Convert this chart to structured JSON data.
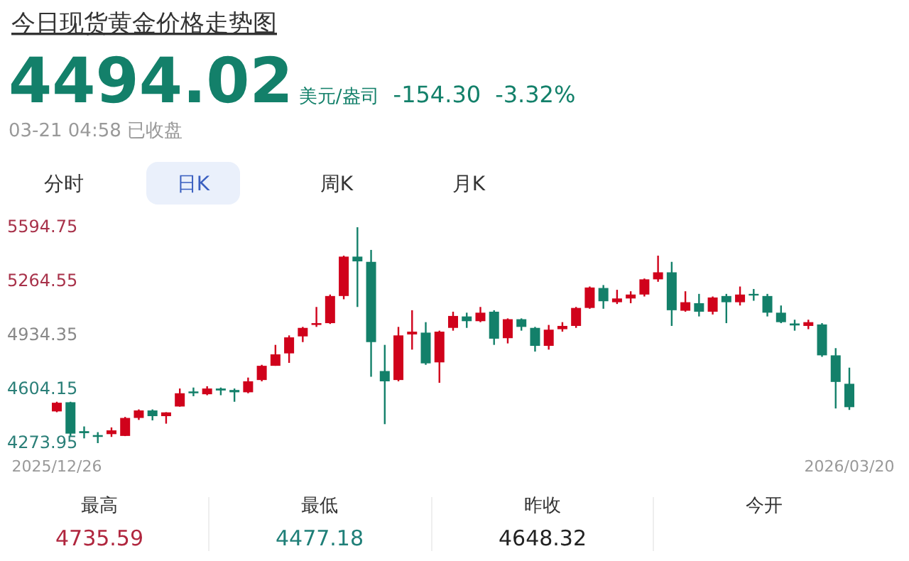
{
  "chart_data": {
    "type": "candlestick",
    "title": "今日现货黄金价格走势图",
    "categories": [
      "2025/12/26",
      null,
      null,
      null,
      null,
      null,
      null,
      null,
      null,
      null,
      null,
      null,
      null,
      null,
      null,
      null,
      null,
      null,
      null,
      null,
      null,
      null,
      null,
      null,
      null,
      null,
      null,
      null,
      null,
      null,
      null,
      null,
      null,
      null,
      null,
      null,
      null,
      null,
      null,
      null,
      null,
      null,
      null,
      null,
      null,
      null,
      null,
      null,
      null,
      null,
      null,
      null,
      null,
      null,
      null,
      null,
      null,
      null,
      "2026/03/20"
    ],
    "ohlc": [
      [
        4468,
        4527,
        4463,
        4521
      ],
      [
        4524,
        4527,
        4318,
        4332
      ],
      [
        4347,
        4376,
        4303,
        4335
      ],
      [
        4323,
        4341,
        4274,
        4312
      ],
      [
        4329,
        4370,
        4312,
        4352
      ],
      [
        4318,
        4434,
        4317,
        4428
      ],
      [
        4428,
        4480,
        4416,
        4474
      ],
      [
        4474,
        4480,
        4413,
        4439
      ],
      [
        4439,
        4463,
        4393,
        4462
      ],
      [
        4498,
        4608,
        4497,
        4579
      ],
      [
        4590,
        4614,
        4561,
        4579
      ],
      [
        4573,
        4622,
        4567,
        4608
      ],
      [
        4608,
        4614,
        4567,
        4596
      ],
      [
        4599,
        4608,
        4527,
        4585
      ],
      [
        4585,
        4675,
        4579,
        4652
      ],
      [
        4660,
        4753,
        4652,
        4747
      ],
      [
        4747,
        4875,
        4747,
        4817
      ],
      [
        4823,
        4933,
        4765,
        4921
      ],
      [
        4927,
        4985,
        4892,
        4979
      ],
      [
        4997,
        5107,
        4985,
        5008
      ],
      [
        5008,
        5183,
        5003,
        5174
      ],
      [
        5174,
        5421,
        5154,
        5415
      ],
      [
        5415,
        5594.75,
        5107,
        5386
      ],
      [
        5383,
        5456,
        4680,
        4892
      ],
      [
        4715,
        4875,
        4390,
        4652
      ],
      [
        4660,
        4985,
        4652,
        4933
      ],
      [
        4939,
        5087,
        4846,
        4956
      ],
      [
        4950,
        5014,
        4753,
        4762
      ],
      [
        4768,
        4962,
        4643,
        4956
      ],
      [
        4979,
        5078,
        4962,
        5052
      ],
      [
        5049,
        5072,
        4979,
        5020
      ],
      [
        5020,
        5107,
        5014,
        5072
      ],
      [
        5078,
        5087,
        4875,
        4913
      ],
      [
        4916,
        5037,
        4884,
        5032
      ],
      [
        5032,
        5037,
        4962,
        4985
      ],
      [
        4979,
        4985,
        4834,
        4869
      ],
      [
        4869,
        4997,
        4846,
        4968
      ],
      [
        4971,
        5014,
        4956,
        4991
      ],
      [
        4991,
        5107,
        4979,
        5101
      ],
      [
        5101,
        5232,
        5096,
        5226
      ],
      [
        5223,
        5241,
        5096,
        5142
      ],
      [
        5136,
        5212,
        5125,
        5159
      ],
      [
        5159,
        5203,
        5130,
        5183
      ],
      [
        5183,
        5281,
        5171,
        5276
      ],
      [
        5276,
        5421,
        5261,
        5319
      ],
      [
        5319,
        5383,
        4991,
        5087
      ],
      [
        5084,
        5203,
        5078,
        5136
      ],
      [
        5130,
        5187,
        5049,
        5078
      ],
      [
        5078,
        5171,
        5061,
        5165
      ],
      [
        5174,
        5187,
        5008,
        5136
      ],
      [
        5136,
        5232,
        5116,
        5183
      ],
      [
        5187,
        5217,
        5145,
        5177
      ],
      [
        5174,
        5187,
        5049,
        5072
      ],
      [
        5072,
        5116,
        5008,
        5014
      ],
      [
        5006,
        5029,
        4962,
        4994
      ],
      [
        4991,
        5029,
        4971,
        5014
      ],
      [
        5000,
        5008,
        4802,
        4811
      ],
      [
        4811,
        4855,
        4486,
        4648.32
      ],
      [
        4637,
        4735.59,
        4477.18,
        4494.02
      ]
    ],
    "ylim": [
      4273.95,
      5594.75
    ],
    "yticks": [
      4273.95,
      4604.15,
      4934.35,
      5264.55,
      5594.75
    ],
    "annotations": [
      "4494.02",
      "美元/盎司",
      "-154.30",
      "-3.32%",
      "03-21 04:58 已收盘",
      "分时",
      "日K",
      "周K",
      "月K",
      "最高",
      "4735.59",
      "最低",
      "4477.18",
      "昨收",
      "4648.32",
      "今开"
    ]
  }
}
